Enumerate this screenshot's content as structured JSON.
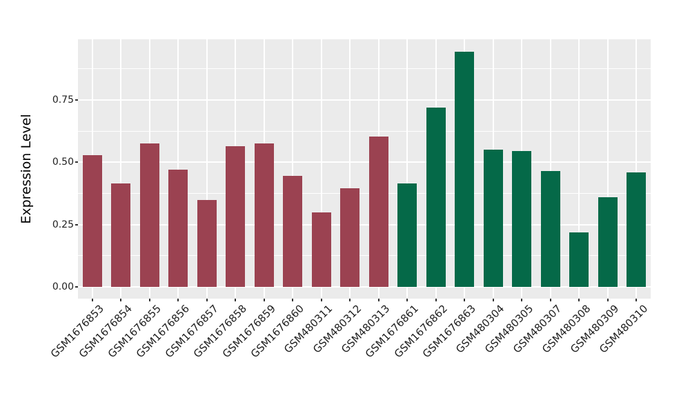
{
  "chart_data": {
    "type": "bar",
    "title": "",
    "xlabel": "",
    "ylabel": "Expression Level",
    "categories": [
      "GSM1676853",
      "GSM1676854",
      "GSM1676855",
      "GSM1676856",
      "GSM1676857",
      "GSM1676858",
      "GSM1676859",
      "GSM1676860",
      "GSM480311",
      "GSM480312",
      "GSM480313",
      "GSM1676861",
      "GSM1676862",
      "GSM1676863",
      "GSM480304",
      "GSM480305",
      "GSM480307",
      "GSM480308",
      "GSM480309",
      "GSM480310"
    ],
    "values": [
      0.53,
      0.415,
      0.575,
      0.47,
      0.35,
      0.565,
      0.575,
      0.445,
      0.3,
      0.395,
      0.605,
      0.415,
      0.72,
      0.945,
      0.55,
      0.545,
      0.465,
      0.22,
      0.36,
      0.46
    ],
    "groups": [
      "maroon",
      "maroon",
      "maroon",
      "maroon",
      "maroon",
      "maroon",
      "maroon",
      "maroon",
      "maroon",
      "maroon",
      "maroon",
      "green",
      "green",
      "green",
      "green",
      "green",
      "green",
      "green",
      "green",
      "green"
    ],
    "group_colors": {
      "maroon": "#9B4251",
      "green": "#056948"
    },
    "ytick_labels": [
      "0.00",
      "0.25",
      "0.50",
      "0.75"
    ],
    "yticks": [
      0,
      0.25,
      0.5,
      0.75
    ],
    "yminor_ticks": [
      0.125,
      0.375,
      0.625,
      0.875
    ],
    "ylim": [
      -0.047,
      0.994
    ],
    "grid": true,
    "panel_bg": "#EBEBEB",
    "grid_color": "#FFFFFF",
    "legend_position": "none",
    "x_label_angle_deg": 45
  }
}
